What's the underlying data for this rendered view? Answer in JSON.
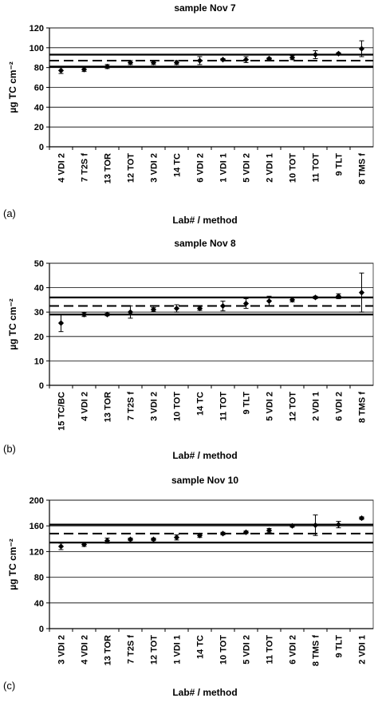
{
  "figure": {
    "colors": {
      "axis": "#000000",
      "gridline": "#000000",
      "marker": "#000000",
      "background": "#ffffff"
    }
  },
  "chart_data": [
    {
      "type": "scatter",
      "panel_label": "(a)",
      "title": "sample Nov 7",
      "xlabel": "Lab# / method",
      "ylabel": "µg TC cm⁻²",
      "ylim": [
        0,
        120
      ],
      "yticks": [
        0,
        20,
        40,
        60,
        80,
        100,
        120
      ],
      "grid": true,
      "categories": [
        "4 VDI 2",
        "7 T2S f",
        "13 TOR",
        "12 TOT",
        "3 VDI 2",
        "14 TC",
        "6 VDI 2",
        "1 VDI 1",
        "5 VDI 2",
        "2 VDI 1",
        "10 TOT",
        "11 TOT",
        "9 TLT",
        "8 TMS f"
      ],
      "values": [
        77,
        78,
        81,
        85,
        85,
        85,
        87,
        88,
        88,
        89,
        90,
        93,
        94,
        99
      ],
      "error": [
        3,
        2,
        2,
        2,
        2,
        2,
        4,
        1,
        3,
        1,
        2,
        4,
        1,
        8
      ],
      "reference_lines": {
        "upper": 93,
        "mean": 87,
        "lower": 81
      }
    },
    {
      "type": "scatter",
      "panel_label": "(b)",
      "title": "sample Nov 8",
      "xlabel": "Lab# / method",
      "ylabel": "µg TC cm⁻²",
      "ylim": [
        0,
        50
      ],
      "yticks": [
        0,
        10,
        20,
        30,
        40,
        50
      ],
      "grid": true,
      "categories": [
        "15 TC/BC",
        "4 VDI 2",
        "13 TOR",
        "7 T2S f",
        "3 VDI 2",
        "10 TOT",
        "14 TC",
        "11 TOT",
        "9 TLT",
        "5 VDI 2",
        "12 TOT",
        "2 VDI 1",
        "6 VDI 2",
        "8 TMS f"
      ],
      "values": [
        25.5,
        29,
        29,
        30,
        31,
        31.5,
        31.5,
        32.5,
        33.5,
        34.5,
        35,
        36,
        36.5,
        38
      ],
      "error": [
        3.5,
        0.8,
        0.5,
        2.5,
        0.8,
        1.5,
        0.8,
        2,
        2,
        2,
        0.8,
        0.5,
        1,
        8
      ],
      "reference_lines": {
        "upper": 36,
        "mean": 32.5,
        "lower": 29
      }
    },
    {
      "type": "scatter",
      "panel_label": "(c)",
      "title": "sample Nov 10",
      "xlabel": "Lab# / method",
      "ylabel": "µg TC cm⁻²",
      "ylim": [
        0,
        200
      ],
      "yticks": [
        0,
        40,
        80,
        120,
        160,
        200
      ],
      "grid": true,
      "categories": [
        "3 VDI 2",
        "4 VDI 2",
        "13 TOR",
        "7 T2S f",
        "12 TOT",
        "1 VDI 1",
        "14 TC",
        "10 TOT",
        "5 VDI 2",
        "11 TOT",
        "6 VDI 2",
        "8 TMS f",
        "9 TLT",
        "2 VDI 1"
      ],
      "values": [
        128,
        131,
        137,
        139,
        139,
        142,
        145,
        148,
        150,
        153,
        160,
        161,
        162,
        172
      ],
      "error": [
        5,
        3,
        4,
        2,
        2,
        4,
        3,
        2,
        2,
        3,
        2,
        16,
        5,
        2
      ],
      "reference_lines": {
        "upper": 162,
        "mean": 148,
        "lower": 134
      }
    }
  ]
}
